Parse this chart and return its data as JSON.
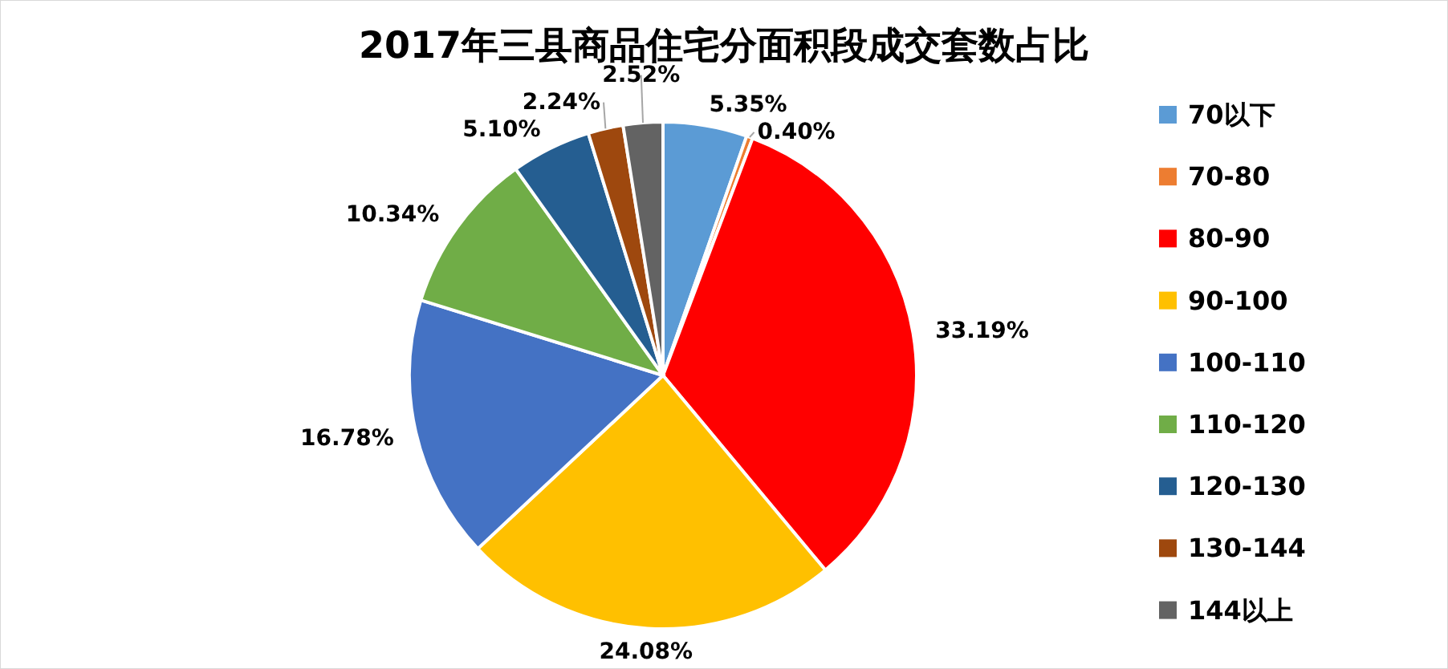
{
  "chart_data": {
    "type": "pie",
    "title": "2017年三县商品住宅分面积段成交套数占比",
    "categories": [
      "70以下",
      "70-80",
      "80-90",
      "90-100",
      "100-110",
      "110-120",
      "120-130",
      "130-144",
      "144以上"
    ],
    "values": [
      5.35,
      0.4,
      33.19,
      24.08,
      16.78,
      10.34,
      5.1,
      2.24,
      2.52
    ],
    "value_labels": [
      "5.35%",
      "0.40%",
      "33.19%",
      "24.08%",
      "16.78%",
      "10.34%",
      "5.10%",
      "2.24%",
      "2.52%"
    ],
    "colors": [
      "#5b9bd5",
      "#ed7d31",
      "#ff0000",
      "#ffc000",
      "#4472c4",
      "#70ad47",
      "#255e91",
      "#9e480e",
      "#636363"
    ],
    "legend": "right"
  }
}
